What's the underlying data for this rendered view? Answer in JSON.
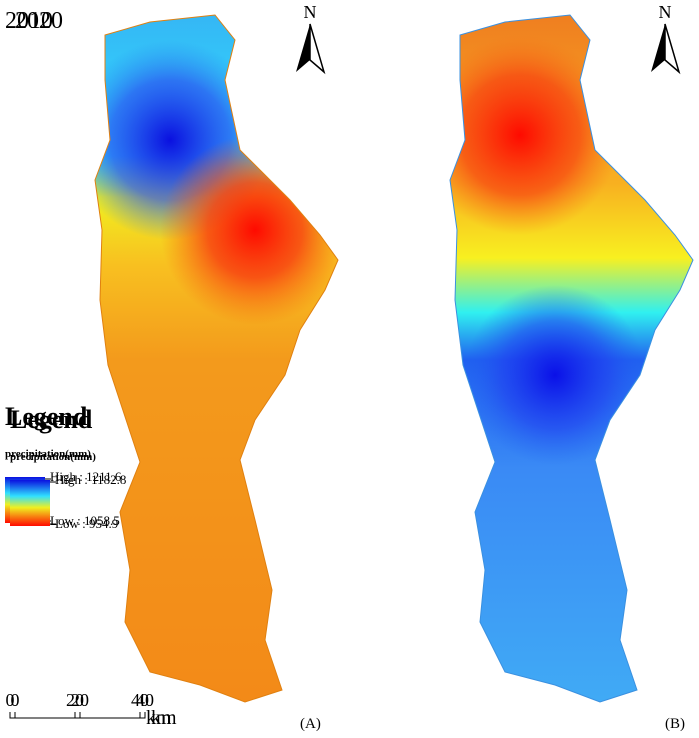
{
  "panels": [
    {
      "year": "2010",
      "north": "N",
      "legend_title": "Legend",
      "legend_subtitle": "precipitation(mm)",
      "high_label": "High : 1211.6",
      "low_label": "Low : 1058.5",
      "scale_ticks": [
        "0",
        "20",
        "40"
      ],
      "scale_unit": "km",
      "panel_label": "(A)"
    },
    {
      "year": "2020",
      "north": "N",
      "legend_title": "Legend",
      "legend_subtitle": "precipitation(mm)",
      "high_label": "High : 1182.8",
      "low_label": "Low : 954.9",
      "scale_ticks": [
        "0",
        "20",
        "40"
      ],
      "scale_unit": "km",
      "panel_label": "(B)"
    }
  ]
}
